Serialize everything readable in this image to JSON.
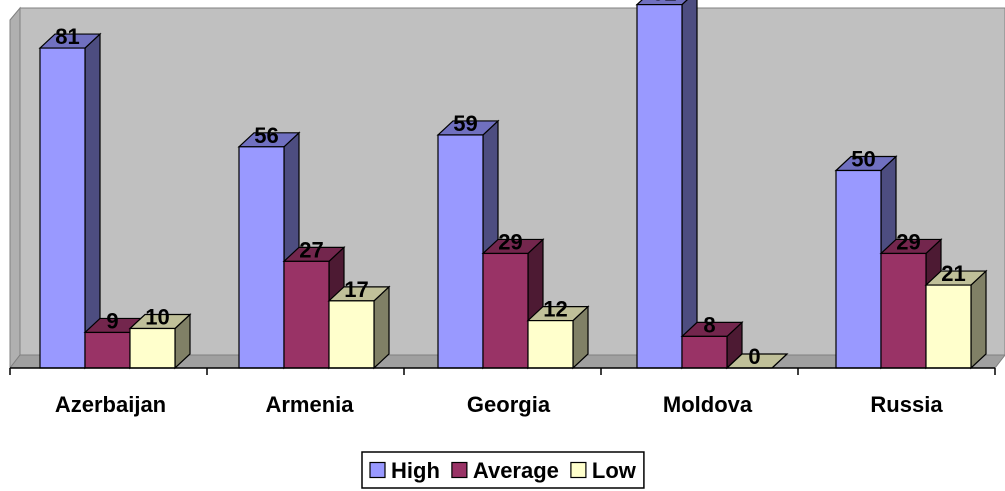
{
  "chart_data": {
    "type": "bar",
    "style": "3d-clustered-column",
    "categories": [
      "Azerbaijan",
      "Armenia",
      "Georgia",
      "Moldova",
      "Russia"
    ],
    "series": [
      {
        "name": "High",
        "values": [
          81,
          56,
          59,
          92,
          50
        ],
        "color": "#9999FF",
        "side_color": "#4D4D80",
        "top_color": "#7070C0"
      },
      {
        "name": "Average",
        "values": [
          9,
          27,
          29,
          8,
          29
        ],
        "color": "#993366",
        "side_color": "#4D1A33",
        "top_color": "#73264D"
      },
      {
        "name": "Low",
        "values": [
          10,
          17,
          12,
          0,
          21
        ],
        "color": "#FFFFCC",
        "side_color": "#808066",
        "top_color": "#C0C099"
      }
    ],
    "data_labels": true,
    "ylim": [
      0,
      100
    ],
    "grid": false,
    "legend_position": "bottom",
    "colors": {
      "wall": "#C0C0C0",
      "floor": "#A0A0A0",
      "outline": "#000000"
    }
  }
}
